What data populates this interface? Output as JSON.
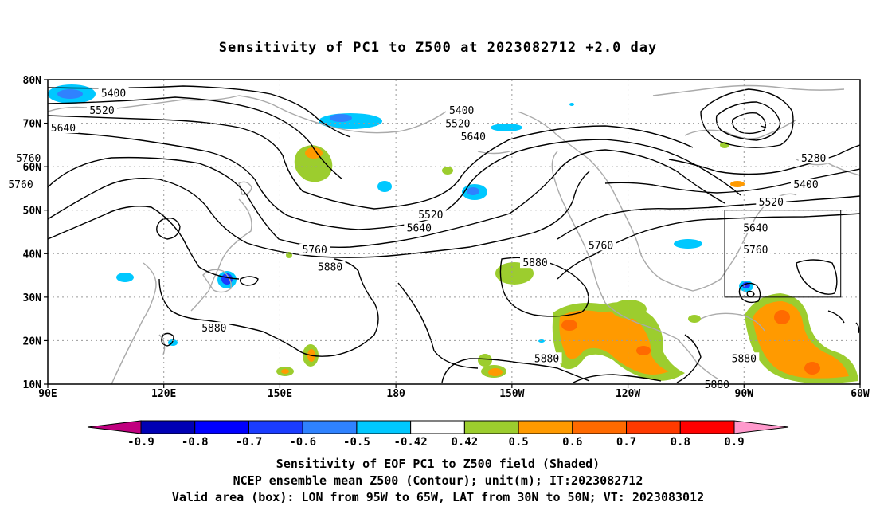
{
  "title": "Sensitivity of PC1 to Z500 at 2023082712 +2.0 day",
  "map": {
    "lat_labels": [
      "80N",
      "70N",
      "60N",
      "50N",
      "40N",
      "30N",
      "20N",
      "10N"
    ],
    "lon_labels": [
      "90E",
      "120E",
      "150E",
      "180",
      "150W",
      "120W",
      "90W",
      "60W"
    ],
    "contour_labels": [
      {
        "text": "5400",
        "lon": 107,
        "lat": 77
      },
      {
        "text": "5520",
        "lon": 104,
        "lat": 73
      },
      {
        "text": "5640",
        "lon": 94,
        "lat": 69
      },
      {
        "text": "5760",
        "lon": 85,
        "lat": 62
      },
      {
        "text": "5760",
        "lon": 83,
        "lat": 56
      },
      {
        "text": "5400",
        "lon": -163,
        "lat": 73
      },
      {
        "text": "5520",
        "lon": -164,
        "lat": 70
      },
      {
        "text": "5640",
        "lon": -160,
        "lat": 67
      },
      {
        "text": "5280",
        "lon": -72,
        "lat": 62
      },
      {
        "text": "5400",
        "lon": -74,
        "lat": 56
      },
      {
        "text": "5520",
        "lon": -83,
        "lat": 52
      },
      {
        "text": "5520",
        "lon": 189,
        "lat": 49
      },
      {
        "text": "5640",
        "lon": 186,
        "lat": 46
      },
      {
        "text": "5760",
        "lon": 159,
        "lat": 41
      },
      {
        "text": "5880",
        "lon": 163,
        "lat": 37
      },
      {
        "text": "5880",
        "lon": 133,
        "lat": 23
      },
      {
        "text": "5880",
        "lon": -144,
        "lat": 38
      },
      {
        "text": "5760",
        "lon": -127,
        "lat": 42
      },
      {
        "text": "5640",
        "lon": -87,
        "lat": 46
      },
      {
        "text": "5760",
        "lon": -87,
        "lat": 41
      },
      {
        "text": "5880",
        "lon": -141,
        "lat": 16
      },
      {
        "text": "5880",
        "lon": -97,
        "lat": 10
      },
      {
        "text": "5880",
        "lon": -90,
        "lat": 16
      }
    ],
    "valid_box": {
      "lon_min": -95,
      "lon_max": -65,
      "lat_min": 30,
      "lat_max": 50
    }
  },
  "colorbar": {
    "labels": [
      "-0.9",
      "-0.8",
      "-0.7",
      "-0.6",
      "-0.5",
      "-0.42",
      "0.42",
      "0.5",
      "0.6",
      "0.7",
      "0.8",
      "0.9"
    ],
    "low_extend": "#c0007f",
    "high_extend": "#ff99cc",
    "colors": [
      "#0000b4",
      "#0000ff",
      "#1a3cff",
      "#2f82ff",
      "#00c8ff",
      "#ffffff",
      "#9ccd2e",
      "#ff9a00",
      "#ff6a00",
      "#ff3a00",
      "#ff0000"
    ]
  },
  "captions": {
    "line1": "Sensitivity of EOF PC1 to Z500 field (Shaded)",
    "line2": "NCEP ensemble mean Z500 (Contour); unit(m); IT:2023082712",
    "line3": "Valid area (box): LON from 95W to 65W, LAT from 30N to 50N; VT: 2023083012"
  }
}
